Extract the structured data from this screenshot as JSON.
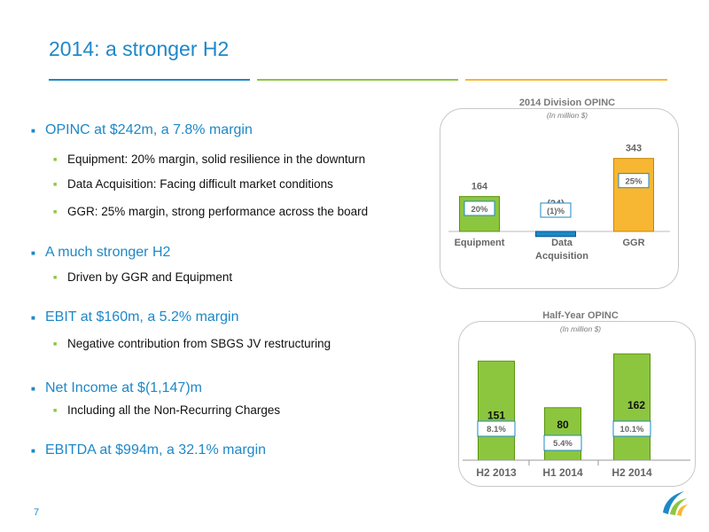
{
  "slide": {
    "title": "2014: a stronger H2",
    "page_number": "7"
  },
  "bullets": [
    {
      "text": "OPINC at $242m, a 7.8% margin",
      "sub": [
        "Equipment: 20% margin, solid resilience in the downturn",
        "Data Acquisition: Facing difficult market conditions",
        "GGR: 25% margin, strong performance across the board"
      ]
    },
    {
      "text": "A much stronger H2",
      "sub": [
        "Driven by GGR and Equipment"
      ]
    },
    {
      "text": "EBIT at $160m, a 5.2% margin",
      "sub": [
        "Negative contribution from SBGS JV restructuring"
      ]
    },
    {
      "text": "Net Income at $(1,147)m",
      "sub": [
        "Including all the Non-Recurring Charges"
      ]
    },
    {
      "text": "EBITDA at $994m, a 32.1% margin",
      "sub": []
    }
  ],
  "colors": {
    "blue": "#1e88c7",
    "green": "#8cc63f",
    "orange": "#f7b733"
  },
  "chart_data": [
    {
      "type": "bar",
      "title": "2014 Division OPINC",
      "subtitle": "(In million $)",
      "categories": [
        "Equipment",
        "Data Acquisition",
        "GGR"
      ],
      "values": [
        164,
        -24,
        343
      ],
      "value_labels": [
        "164",
        "(24)",
        "343"
      ],
      "margins": [
        "20%",
        "(1)%",
        "25%"
      ],
      "bar_colors": [
        "#8cc63f",
        "#1e88c7",
        "#f7b733"
      ]
    },
    {
      "type": "bar",
      "title": "Half-Year OPINC",
      "subtitle": "(In million $)",
      "categories": [
        "H2 2013",
        "H1 2014",
        "H2 2014"
      ],
      "values": [
        151,
        80,
        162
      ],
      "value_labels": [
        "151",
        "80",
        "162"
      ],
      "margins": [
        "8.1%",
        "5.4%",
        "10.1%"
      ],
      "bar_colors": [
        "#8cc63f",
        "#8cc63f",
        "#8cc63f"
      ]
    }
  ]
}
